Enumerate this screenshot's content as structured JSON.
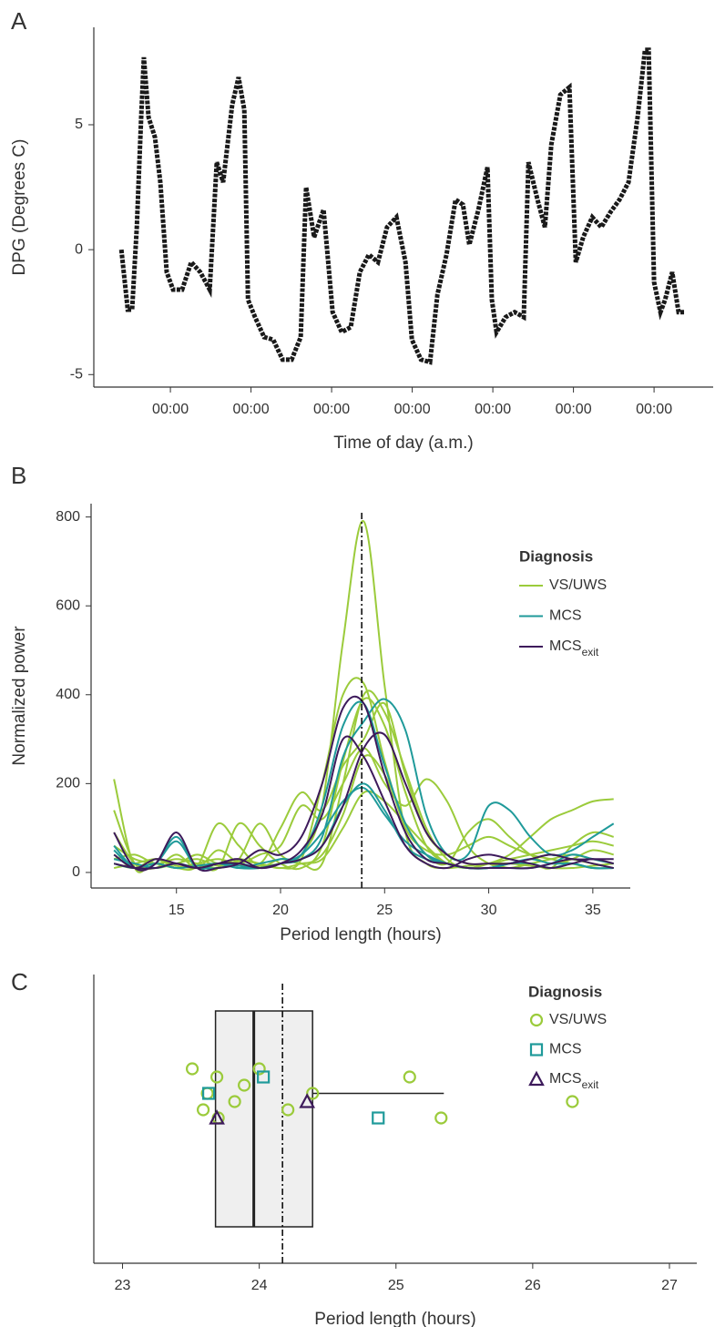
{
  "chart_data": [
    {
      "type": "line",
      "panel_label": "A",
      "xlabel": "Time of day (a.m.)",
      "ylabel": "DPG (Degrees C)",
      "color": "#1a1a1a",
      "xlim": [
        1.2,
        185.6
      ],
      "ylim": [
        -5.5,
        8.9
      ],
      "xticks": [
        {
          "value": 24,
          "label": "00:00"
        },
        {
          "value": 48,
          "label": "00:00"
        },
        {
          "value": 72,
          "label": "00:00"
        },
        {
          "value": 96,
          "label": "00:00"
        },
        {
          "value": 120,
          "label": "00:00"
        },
        {
          "value": 144,
          "label": "00:00"
        },
        {
          "value": 168,
          "label": "00:00"
        }
      ],
      "yticks": [
        -5,
        0,
        5
      ],
      "x": [
        9.4,
        11.3,
        12.6,
        14.0,
        15.3,
        16.1,
        17.5,
        19.4,
        21.0,
        22.9,
        24.8,
        27.5,
        30.2,
        32.9,
        35.7,
        37.8,
        39.7,
        42.4,
        44.3,
        46.0,
        47.1,
        49.2,
        51.9,
        54.6,
        57.4,
        60.1,
        62.8,
        64.4,
        66.8,
        69.6,
        72.3,
        75.0,
        77.7,
        80.4,
        83.1,
        85.8,
        88.5,
        91.3,
        94.0,
        95.9,
        98.6,
        101.3,
        103.5,
        106.2,
        108.9,
        111.1,
        113.0,
        115.7,
        118.4,
        119.7,
        121.1,
        123.8,
        126.5,
        129.2,
        130.6,
        133.3,
        135.5,
        137.4,
        140.1,
        142.8,
        144.7,
        146.9,
        149.6,
        152.3,
        155.0,
        157.7,
        160.4,
        163.1,
        165.3,
        166.4,
        168.0,
        169.9,
        171.3,
        173.4,
        175.3,
        177.2
      ],
      "values": [
        0,
        -2.4,
        -2.4,
        0.9,
        5.3,
        7.7,
        5.3,
        4.5,
        2.7,
        -0.9,
        -1.6,
        -1.6,
        -0.5,
        -0.9,
        -1.6,
        3.5,
        2.7,
        5.8,
        6.9,
        5.6,
        -2.0,
        -2.7,
        -3.5,
        -3.6,
        -4.4,
        -4.4,
        -3.5,
        2.5,
        0.5,
        1.6,
        -2.5,
        -3.3,
        -3.1,
        -0.9,
        -0.2,
        -0.5,
        0.9,
        1.3,
        -0.5,
        -3.6,
        -4.4,
        -4.5,
        -1.8,
        -0.2,
        2.0,
        1.8,
        0.2,
        1.6,
        3.3,
        -2.0,
        -3.3,
        -2.7,
        -2.5,
        -2.7,
        3.5,
        2.0,
        0.9,
        4.2,
        6.2,
        6.5,
        -0.5,
        0.5,
        1.3,
        0.9,
        1.5,
        2.0,
        2.7,
        5.3,
        8.0,
        8.0,
        -1.3,
        -2.5,
        -2.0,
        -0.9,
        -2.5,
        -2.5
      ]
    },
    {
      "type": "line",
      "panel_label": "B",
      "xlabel": "Period length (hours)",
      "ylabel": "Normalized power",
      "legend_title": "Diagnosis",
      "xlim": [
        10.9,
        36.8
      ],
      "ylim": [
        -35,
        830
      ],
      "xticks": [
        15,
        20,
        25,
        30,
        35
      ],
      "yticks": [
        0,
        200,
        400,
        600,
        800
      ],
      "reference_line": 23.9,
      "x": [
        12,
        13,
        14,
        15,
        16,
        17,
        18,
        19,
        20,
        21,
        22,
        23,
        24,
        25,
        26,
        27,
        28,
        29,
        30,
        31,
        32,
        33,
        34,
        35,
        36
      ],
      "series": [
        {
          "name": "VS/UWS",
          "color": "#9bcb3b",
          "lines": [
            [
              210,
              10,
              30,
              15,
              10,
              20,
              10,
              15,
              20,
              40,
              150,
              520,
              790,
              420,
              90,
              20,
              10,
              15,
              20,
              20,
              15,
              10,
              10,
              15,
              20
            ],
            [
              140,
              20,
              10,
              20,
              30,
              15,
              25,
              20,
              10,
              30,
              200,
              400,
              425,
              250,
              100,
              50,
              40,
              60,
              80,
              60,
              40,
              30,
              20,
              10,
              10
            ],
            [
              60,
              30,
              20,
              10,
              15,
              110,
              60,
              20,
              100,
              180,
              140,
              240,
              300,
              380,
              220,
              90,
              40,
              20,
              20,
              30,
              40,
              50,
              60,
              70,
              60
            ],
            [
              30,
              40,
              20,
              30,
              20,
              10,
              110,
              60,
              20,
              10,
              60,
              250,
              390,
              330,
              180,
              60,
              20,
              10,
              20,
              40,
              80,
              120,
              140,
              160,
              165
            ],
            [
              20,
              10,
              30,
              10,
              20,
              30,
              20,
              40,
              60,
              150,
              120,
              200,
              280,
              200,
              150,
              210,
              160,
              60,
              20,
              10,
              20,
              30,
              40,
              30,
              20
            ],
            [
              90,
              20,
              10,
              40,
              10,
              50,
              20,
              10,
              30,
              20,
              40,
              130,
              260,
              220,
              110,
              40,
              20,
              90,
              120,
              80,
              40,
              20,
              30,
              50,
              40
            ],
            [
              10,
              20,
              30,
              20,
              40,
              20,
              30,
              20,
              10,
              20,
              30,
              100,
              180,
              160,
              110,
              60,
              20,
              10,
              10,
              20,
              30,
              40,
              30,
              20,
              10
            ],
            [
              40,
              10,
              20,
              10,
              20,
              10,
              30,
              110,
              40,
              20,
              20,
              200,
              400,
              360,
              230,
              100,
              30,
              10,
              20,
              10,
              20,
              10,
              60,
              90,
              80
            ]
          ]
        },
        {
          "name": "MCS",
          "color": "#1f9a9a",
          "lines": [
            [
              50,
              10,
              20,
              80,
              10,
              20,
              10,
              20,
              30,
              40,
              150,
              330,
              380,
              240,
              110,
              40,
              20,
              10,
              10,
              20,
              20,
              10,
              20,
              10,
              10
            ],
            [
              30,
              20,
              10,
              20,
              10,
              10,
              20,
              10,
              20,
              30,
              80,
              260,
              340,
              390,
              320,
              130,
              40,
              40,
              150,
              140,
              80,
              40,
              50,
              80,
              110
            ],
            [
              20,
              10,
              20,
              10,
              15,
              20,
              15,
              10,
              20,
              40,
              90,
              160,
              190,
              130,
              70,
              40,
              20,
              10,
              10,
              20,
              30,
              20,
              20,
              10,
              10
            ],
            [
              60,
              10,
              20,
              70,
              10,
              20,
              10,
              10,
              20,
              30,
              60,
              150,
              200,
              140,
              60,
              30,
              20,
              10,
              10,
              10,
              10,
              20,
              40,
              30,
              20
            ]
          ]
        },
        {
          "name": "MCS",
          "name_subscript": "exit",
          "color": "#3d1a5b",
          "lines": [
            [
              90,
              10,
              20,
              90,
              10,
              10,
              20,
              50,
              40,
              80,
              200,
              370,
              380,
              220,
              90,
              30,
              20,
              10,
              10,
              10,
              10,
              20,
              30,
              20,
              10
            ],
            [
              40,
              10,
              30,
              20,
              10,
              20,
              30,
              10,
              20,
              50,
              130,
              300,
              260,
              160,
              60,
              20,
              10,
              30,
              40,
              30,
              20,
              10,
              20,
              30,
              20
            ],
            [
              20,
              10,
              10,
              20,
              10,
              20,
              20,
              10,
              20,
              30,
              60,
              150,
              280,
              310,
              200,
              90,
              40,
              20,
              20,
              20,
              30,
              40,
              30,
              30,
              30
            ]
          ]
        }
      ]
    },
    {
      "type": "box",
      "panel_label": "C",
      "xlabel": "Period length (hours)",
      "legend_title": "Diagnosis",
      "xlim": [
        22.79,
        27.2
      ],
      "xticks": [
        23,
        24,
        25,
        26,
        27
      ],
      "reference_line": 24.17,
      "box": {
        "q1": 23.68,
        "median": 23.96,
        "q3": 24.39,
        "whisker_high": 25.35
      },
      "groups": [
        {
          "name": "VS/UWS",
          "color": "#9bcb3b",
          "marker": "circle",
          "values": [
            23.51,
            23.59,
            23.62,
            23.69,
            23.7,
            23.82,
            23.89,
            24.0,
            24.21,
            24.39,
            25.1,
            25.33,
            26.29
          ]
        },
        {
          "name": "MCS",
          "color": "#1f9a9a",
          "marker": "square",
          "values": [
            23.63,
            24.03,
            24.87
          ]
        },
        {
          "name": "MCS",
          "name_subscript": "exit",
          "color": "#3d1a5b",
          "marker": "triangle",
          "values": [
            23.69,
            24.35
          ]
        }
      ]
    }
  ]
}
